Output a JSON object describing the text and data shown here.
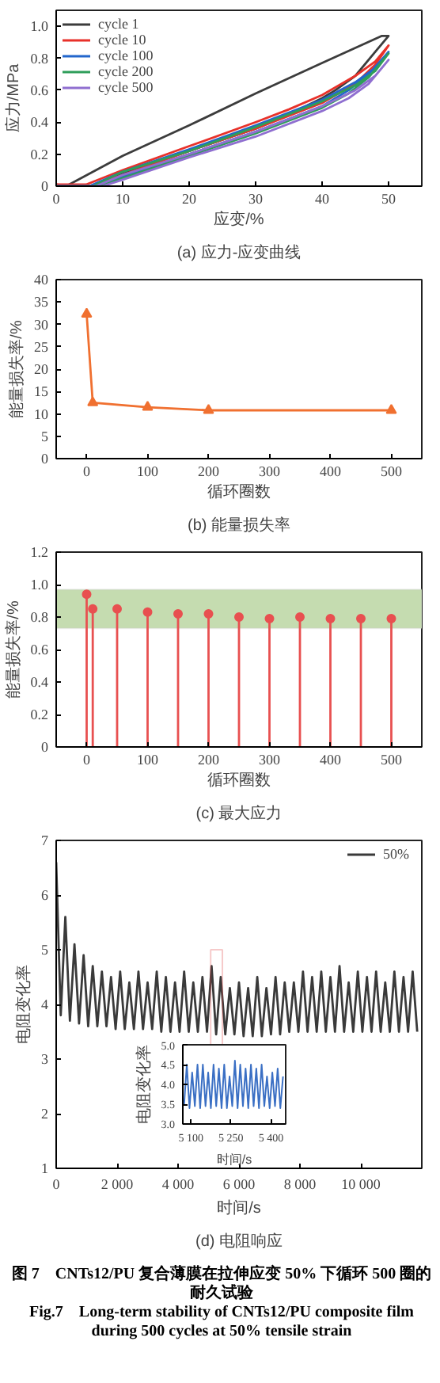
{
  "chart_data": [
    {
      "type": "line",
      "title": "(a) 应力-应变曲线",
      "xlabel": "应变/%",
      "ylabel": "应力/MPa",
      "xlim": [
        0,
        55
      ],
      "ylim": [
        0,
        1.1
      ],
      "xticks": [
        0,
        10,
        20,
        30,
        40,
        50
      ],
      "yticks": [
        0,
        0.2,
        0.4,
        0.6,
        0.8,
        {
          "value": 1,
          "label": "1.0"
        }
      ],
      "legend": "top left",
      "grid": false,
      "series": [
        {
          "name": "cycle 1",
          "color": "#3c3c3c",
          "x": [
            0,
            1.5,
            10,
            20,
            30,
            40,
            49,
            50,
            48,
            45,
            42,
            40,
            35,
            30,
            25,
            20,
            15,
            10,
            7,
            5,
            0
          ],
          "values": [
            0.01,
            0,
            0.19,
            0.38,
            0.58,
            0.77,
            0.94,
            0.94,
            0.84,
            0.69,
            0.6,
            0.55,
            0.45,
            0.36,
            0.29,
            0.22,
            0.15,
            0.08,
            0.03,
            0,
            0
          ]
        },
        {
          "name": "cycle 10",
          "color": "#e8312a",
          "x": [
            0,
            4.5,
            10,
            20,
            30,
            35,
            40,
            45,
            48,
            50,
            48,
            45,
            40,
            35,
            30,
            20,
            10,
            6
          ],
          "values": [
            0.01,
            0.01,
            0.1,
            0.25,
            0.4,
            0.48,
            0.57,
            0.69,
            0.78,
            0.88,
            0.76,
            0.64,
            0.52,
            0.44,
            0.36,
            0.22,
            0.07,
            0.01
          ]
        },
        {
          "name": "cycle 100",
          "color": "#2266cc",
          "x": [
            0,
            5,
            10,
            20,
            30,
            40,
            45,
            48,
            50,
            47,
            44,
            40,
            30,
            20,
            10,
            6
          ],
          "values": [
            0,
            0,
            0.09,
            0.23,
            0.38,
            0.54,
            0.65,
            0.74,
            0.84,
            0.7,
            0.6,
            0.5,
            0.34,
            0.2,
            0.06,
            0
          ]
        },
        {
          "name": "cycle 200",
          "color": "#2e9e5a",
          "x": [
            0,
            5.5,
            10,
            20,
            30,
            40,
            45,
            48,
            50,
            47,
            44,
            40,
            30,
            20,
            10,
            6.5
          ],
          "values": [
            0,
            0,
            0.09,
            0.22,
            0.37,
            0.53,
            0.63,
            0.72,
            0.83,
            0.68,
            0.58,
            0.49,
            0.33,
            0.19,
            0.05,
            0
          ]
        },
        {
          "name": "cycle 500",
          "color": "#8f6fd0",
          "x": [
            0,
            6,
            10,
            20,
            30,
            40,
            45,
            48,
            50,
            47,
            44,
            40,
            30,
            20,
            10,
            7
          ],
          "values": [
            0,
            0,
            0.07,
            0.2,
            0.34,
            0.5,
            0.6,
            0.69,
            0.79,
            0.64,
            0.55,
            0.47,
            0.31,
            0.18,
            0.04,
            0
          ]
        }
      ]
    },
    {
      "type": "line",
      "title": "(b) 能量损失率",
      "xlabel": "循环圈数",
      "ylabel": "能量损失率/%",
      "xlim": [
        -50,
        550
      ],
      "ylim": [
        0,
        40
      ],
      "xticks": [
        0,
        100,
        200,
        300,
        400,
        500
      ],
      "yticks": [
        0,
        5,
        10,
        15,
        20,
        25,
        30,
        35,
        40
      ],
      "marker": "triangle",
      "grid": false,
      "series": [
        {
          "color": "#f07030",
          "x": [
            0,
            10,
            100,
            200,
            500
          ],
          "values": [
            32.3,
            12.5,
            11.5,
            10.8,
            10.8
          ]
        }
      ]
    },
    {
      "type": "lollipop",
      "title": "(c) 最大应力",
      "xlabel": "循环圈数",
      "ylabel": "能量损失率/%",
      "xlim": [
        -50,
        550
      ],
      "ylim": [
        0,
        1.2
      ],
      "xticks": [
        0,
        100,
        200,
        300,
        400,
        500
      ],
      "yticks": [
        0,
        0.2,
        0.4,
        0.6,
        0.8,
        {
          "value": 1,
          "label": "1.0"
        },
        1.2
      ],
      "marker": "circle",
      "grid": false,
      "bands": [
        {
          "axis": "y",
          "from": 0.73,
          "to": 0.97,
          "color": "#c5dcb0"
        }
      ],
      "series": [
        {
          "color": "#e85050",
          "x": [
            0,
            10,
            50,
            100,
            150,
            200,
            250,
            300,
            350,
            400,
            450,
            500
          ],
          "values": [
            0.94,
            0.85,
            0.85,
            0.83,
            0.82,
            0.82,
            0.8,
            0.79,
            0.8,
            0.79,
            0.79,
            0.79
          ]
        }
      ]
    },
    {
      "type": "line",
      "title": "(d) 电阻响应",
      "xlabel": "时间/s",
      "ylabel": "电阻变化率",
      "xlim": [
        0,
        12000
      ],
      "ylim": [
        1,
        7
      ],
      "xticks": [
        0,
        {
          "value": 2000,
          "label": "2 000"
        },
        {
          "value": 4000,
          "label": "4 000"
        },
        {
          "value": 6000,
          "label": "6 000"
        },
        {
          "value": 8000,
          "label": "8 000"
        },
        {
          "value": 10000,
          "label": "10 000"
        }
      ],
      "yticks": [
        1,
        2,
        3,
        4,
        5,
        6,
        7
      ],
      "legend": "top right",
      "grid": false,
      "annotations": [
        "图 7　CNTs12/PU 复合薄膜在拉伸应变 50% 下循环 500 圈的耐久试验",
        "Fig.7　Long-term stability of CNTs12/PU composite film during 500 cycles at 50% tensile strain"
      ],
      "series": [
        {
          "name": "50%",
          "color": "#3a3a3a",
          "x": [
            0,
            150,
            300,
            450,
            600,
            750,
            900,
            1050,
            1200,
            1350,
            1500,
            1650,
            1800,
            1950,
            2100,
            2250,
            2400,
            2550,
            2700,
            2850,
            3000,
            3150,
            3300,
            3450,
            3600,
            3750,
            3900,
            4050,
            4200,
            4350,
            4500,
            4650,
            4800,
            4950,
            5100,
            5250,
            5400,
            5550,
            5700,
            5850,
            6000,
            6150,
            6300,
            6450,
            6600,
            6750,
            6900,
            7050,
            7200,
            7350,
            7500,
            7650,
            7800,
            7950,
            8100,
            8250,
            8400,
            8550,
            8700,
            8850,
            9000,
            9150,
            9300,
            9450,
            9600,
            9750,
            9900,
            10050,
            10200,
            10350,
            10500,
            10650,
            10800,
            10950,
            11100,
            11250,
            11400,
            11550,
            11700,
            11850
          ],
          "values": [
            6.6,
            3.8,
            5.6,
            3.7,
            5.1,
            3.65,
            4.9,
            3.6,
            4.7,
            3.6,
            4.6,
            3.6,
            4.5,
            3.55,
            4.6,
            3.55,
            4.4,
            3.55,
            4.6,
            3.55,
            4.4,
            3.55,
            4.6,
            3.5,
            4.5,
            3.5,
            4.4,
            3.5,
            4.6,
            3.5,
            4.4,
            3.5,
            4.5,
            3.5,
            4.7,
            3.45,
            4.5,
            3.45,
            4.3,
            3.45,
            4.4,
            3.42,
            4.3,
            3.42,
            4.5,
            3.42,
            4.3,
            3.45,
            4.5,
            3.45,
            4.4,
            3.5,
            4.4,
            3.5,
            4.6,
            3.5,
            4.5,
            3.5,
            4.6,
            3.5,
            4.5,
            3.5,
            4.7,
            3.5,
            4.4,
            3.5,
            4.6,
            3.5,
            4.5,
            3.5,
            4.6,
            3.5,
            4.4,
            3.5,
            4.6,
            3.5,
            4.5,
            3.5,
            4.6,
            3.5
          ]
        }
      ]
    },
    {
      "type": "line",
      "xlabel": "时间/s",
      "ylabel": "电阻变化率",
      "xlim": [
        5070,
        5455
      ],
      "ylim": [
        3.0,
        5.0
      ],
      "xticks": [
        {
          "value": 5100,
          "label": "5 100"
        },
        {
          "value": 5250,
          "label": "5 250"
        },
        {
          "value": 5400,
          "label": "5 400"
        }
      ],
      "yticks": [
        {
          "value": 3,
          "label": "3.0"
        },
        3.5,
        {
          "value": 4,
          "label": "4.0"
        },
        4.5,
        {
          "value": 5,
          "label": "5.0"
        }
      ],
      "grid": false,
      "series": [
        {
          "color": "#3a6fc4",
          "x": [
            5075,
            5085,
            5095,
            5105,
            5115,
            5125,
            5135,
            5145,
            5155,
            5165,
            5175,
            5185,
            5195,
            5205,
            5215,
            5225,
            5235,
            5245,
            5255,
            5265,
            5275,
            5285,
            5295,
            5305,
            5315,
            5325,
            5335,
            5345,
            5355,
            5365,
            5375,
            5385,
            5395,
            5405,
            5415,
            5425,
            5435,
            5445
          ],
          "values": [
            3.5,
            4.5,
            3.4,
            4.3,
            3.45,
            4.5,
            3.4,
            4.5,
            3.45,
            4.3,
            3.4,
            4.5,
            3.45,
            4.4,
            3.4,
            4.5,
            3.4,
            4.2,
            3.45,
            4.6,
            3.4,
            4.5,
            3.45,
            4.4,
            3.4,
            4.5,
            3.45,
            4.4,
            3.4,
            4.5,
            3.45,
            4.2,
            3.4,
            4.3,
            3.45,
            4.4,
            3.4,
            4.2
          ]
        }
      ]
    }
  ]
}
